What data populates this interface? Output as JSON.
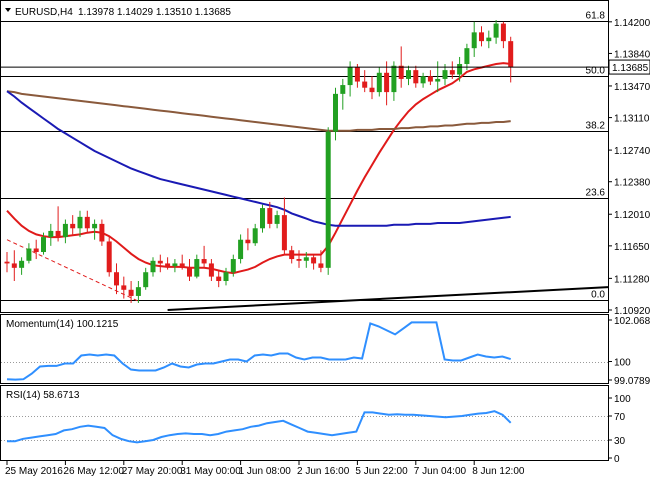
{
  "header": {
    "symbol": "EURUSD,H4",
    "ohlc": "1.13978 1.14029 1.13510 1.13685"
  },
  "colors": {
    "bull": "#22a022",
    "bear": "#e11c1c",
    "sma_fast": "#e01a1a",
    "sma_mid": "#8a5a3c",
    "sma_slow": "#1a1ab4",
    "trend": "#000000",
    "momentum": "#2f8fff",
    "rsi": "#2f8fff"
  },
  "chart_data": [
    {
      "type": "candlestick",
      "title": "EURUSD,H4",
      "ylim": [
        1.1092,
        1.1438
      ],
      "y_ticks": [
        "1.14200",
        "1.13840",
        "1.13470",
        "1.13110",
        "1.12740",
        "1.12380",
        "1.12010",
        "1.11650",
        "1.11280",
        "1.10920"
      ],
      "y_tick_values": [
        1.142,
        1.1384,
        1.1347,
        1.1311,
        1.1274,
        1.1238,
        1.1201,
        1.1165,
        1.1128,
        1.1092
      ],
      "current_price_label": "1.13685",
      "current_price": 1.13685,
      "x_labels": [
        "25 May 2016",
        "26 May 12:00",
        "27 May 20:00",
        "31 May 00:00",
        "1 Jun 08:00",
        "2 Jun 16:00",
        "5 Jun 22:00",
        "7 Jun 04:00",
        "8 Jun 12:00"
      ],
      "x_label_index": [
        0,
        8,
        16,
        24,
        32,
        40,
        48,
        56,
        64
      ],
      "fib_levels": [
        {
          "label": "61.8",
          "value": 1.1421
        },
        {
          "label": "50.0",
          "value": 1.1358
        },
        {
          "label": "38.2",
          "value": 1.1296
        },
        {
          "label": "23.6",
          "value": 1.122
        },
        {
          "label": "0.0",
          "value": 1.1103
        }
      ],
      "candles": [
        [
          1.1147,
          1.1158,
          1.1135,
          1.1145
        ],
        [
          1.1145,
          1.116,
          1.1125,
          1.114
        ],
        [
          1.114,
          1.1152,
          1.1132,
          1.1148
        ],
        [
          1.1148,
          1.1168,
          1.1145,
          1.1162
        ],
        [
          1.1162,
          1.1172,
          1.115,
          1.1158
        ],
        [
          1.1158,
          1.118,
          1.1155,
          1.1175
        ],
        [
          1.1175,
          1.119,
          1.1165,
          1.1182
        ],
        [
          1.1182,
          1.121,
          1.117,
          1.1175
        ],
        [
          1.1175,
          1.1195,
          1.1168,
          1.119
        ],
        [
          1.119,
          1.12,
          1.1178,
          1.1185
        ],
        [
          1.1185,
          1.1205,
          1.1175,
          1.1198
        ],
        [
          1.1198,
          1.1205,
          1.118,
          1.1185
        ],
        [
          1.1185,
          1.1195,
          1.1172,
          1.119
        ],
        [
          1.119,
          1.1195,
          1.1165,
          1.117
        ],
        [
          1.117,
          1.1175,
          1.113,
          1.1135
        ],
        [
          1.1135,
          1.1145,
          1.111,
          1.112
        ],
        [
          1.112,
          1.113,
          1.1105,
          1.1115
        ],
        [
          1.1115,
          1.1125,
          1.11,
          1.1108
        ],
        [
          1.1108,
          1.1125,
          1.11,
          1.1118
        ],
        [
          1.1118,
          1.114,
          1.1115,
          1.1135
        ],
        [
          1.1135,
          1.1152,
          1.113,
          1.1148
        ],
        [
          1.1148,
          1.1155,
          1.1135,
          1.1145
        ],
        [
          1.1145,
          1.1152,
          1.1138,
          1.1142
        ],
        [
          1.1142,
          1.115,
          1.1135,
          1.1145
        ],
        [
          1.1145,
          1.1155,
          1.1138,
          1.114
        ],
        [
          1.114,
          1.115,
          1.1125,
          1.113
        ],
        [
          1.113,
          1.1155,
          1.1128,
          1.115
        ],
        [
          1.115,
          1.1165,
          1.114,
          1.1145
        ],
        [
          1.1145,
          1.115,
          1.1125,
          1.113
        ],
        [
          1.113,
          1.1138,
          1.1118,
          1.1125
        ],
        [
          1.1125,
          1.114,
          1.112,
          1.1135
        ],
        [
          1.1135,
          1.1155,
          1.113,
          1.115
        ],
        [
          1.115,
          1.1178,
          1.1145,
          1.1172
        ],
        [
          1.1172,
          1.1185,
          1.116,
          1.1168
        ],
        [
          1.1168,
          1.119,
          1.1165,
          1.1185
        ],
        [
          1.1185,
          1.1212,
          1.118,
          1.1208
        ],
        [
          1.1208,
          1.1215,
          1.1185,
          1.119
        ],
        [
          1.119,
          1.1205,
          1.1185,
          1.12
        ],
        [
          1.12,
          1.122,
          1.1155,
          1.116
        ],
        [
          1.116,
          1.1165,
          1.1145,
          1.115
        ],
        [
          1.115,
          1.116,
          1.114,
          1.1148
        ],
        [
          1.1148,
          1.1158,
          1.114,
          1.1152
        ],
        [
          1.1152,
          1.1155,
          1.1138,
          1.1145
        ],
        [
          1.1145,
          1.116,
          1.1135,
          1.114
        ],
        [
          1.114,
          1.13,
          1.1132,
          1.1295
        ],
        [
          1.1295,
          1.1345,
          1.1285,
          1.1338
        ],
        [
          1.1338,
          1.1355,
          1.132,
          1.1348
        ],
        [
          1.1348,
          1.1375,
          1.1335,
          1.1368
        ],
        [
          1.1368,
          1.1372,
          1.1345,
          1.1352
        ],
        [
          1.1352,
          1.1365,
          1.134,
          1.1345
        ],
        [
          1.1345,
          1.1358,
          1.1332,
          1.134
        ],
        [
          1.134,
          1.1368,
          1.1335,
          1.1362
        ],
        [
          1.1362,
          1.1375,
          1.1325,
          1.134
        ],
        [
          1.134,
          1.1375,
          1.133,
          1.137
        ],
        [
          1.137,
          1.1392,
          1.1345,
          1.1355
        ],
        [
          1.1355,
          1.137,
          1.1348,
          1.1365
        ],
        [
          1.1365,
          1.137,
          1.1345,
          1.135
        ],
        [
          1.135,
          1.1362,
          1.1345,
          1.1358
        ],
        [
          1.1358,
          1.1365,
          1.1348,
          1.1352
        ],
        [
          1.1352,
          1.1375,
          1.134,
          1.1355
        ],
        [
          1.1355,
          1.1372,
          1.1348,
          1.1365
        ],
        [
          1.1365,
          1.1375,
          1.1355,
          1.136
        ],
        [
          1.136,
          1.138,
          1.1352,
          1.1372
        ],
        [
          1.1372,
          1.1395,
          1.1365,
          1.139
        ],
        [
          1.139,
          1.142,
          1.138,
          1.1408
        ],
        [
          1.1408,
          1.1415,
          1.1392,
          1.1398
        ],
        [
          1.1398,
          1.141,
          1.139,
          1.1402
        ],
        [
          1.1402,
          1.1422,
          1.1395,
          1.1418
        ],
        [
          1.1418,
          1.142,
          1.139,
          1.1398
        ],
        [
          1.1398,
          1.1403,
          1.1351,
          1.13685
        ]
      ],
      "series": [
        {
          "line_id": "sma-fast",
          "values": [
            1.1205,
            1.1196,
            1.1188,
            1.1182,
            1.1178,
            1.1176,
            1.1175,
            1.1175,
            1.1176,
            1.1177,
            1.1178,
            1.118,
            1.1181,
            1.118,
            1.1176,
            1.117,
            1.1163,
            1.1156,
            1.115,
            1.1146,
            1.1143,
            1.1142,
            1.1141,
            1.1141,
            1.1141,
            1.114,
            1.114,
            1.114,
            1.1139,
            1.1137,
            1.1135,
            1.1134,
            1.1136,
            1.1138,
            1.1141,
            1.1146,
            1.115,
            1.1153,
            1.1155,
            1.1155,
            1.1155,
            1.1155,
            1.1155,
            1.1155,
            1.1165,
            1.118,
            1.1196,
            1.1212,
            1.1228,
            1.1243,
            1.1257,
            1.1271,
            1.1284,
            1.1297,
            1.1308,
            1.1318,
            1.1326,
            1.1332,
            1.1337,
            1.1342,
            1.1346,
            1.135,
            1.1356,
            1.1363,
            1.1366,
            1.1368,
            1.137,
            1.1372,
            1.1373,
            1.1372
          ]
        },
        {
          "line_id": "sma-mid",
          "values": [
            1.1341,
            1.134,
            1.1338,
            1.1337,
            1.1336,
            1.1335,
            1.1334,
            1.1333,
            1.1332,
            1.1331,
            1.133,
            1.1329,
            1.1328,
            1.1327,
            1.1326,
            1.1325,
            1.1324,
            1.1323,
            1.1322,
            1.1321,
            1.132,
            1.1319,
            1.1318,
            1.1317,
            1.1316,
            1.1315,
            1.1314,
            1.1313,
            1.1312,
            1.1311,
            1.131,
            1.1309,
            1.1308,
            1.1307,
            1.1306,
            1.1305,
            1.1304,
            1.1303,
            1.1302,
            1.1301,
            1.13,
            1.1299,
            1.1298,
            1.1297,
            1.1296,
            1.1296,
            1.1296,
            1.1296,
            1.1297,
            1.1297,
            1.1297,
            1.1298,
            1.1298,
            1.1298,
            1.1299,
            1.1299,
            1.13,
            1.13,
            1.1301,
            1.1301,
            1.1302,
            1.1302,
            1.1303,
            1.1304,
            1.1304,
            1.1305,
            1.1305,
            1.1306,
            1.1306,
            1.1307
          ]
        },
        {
          "line_id": "sma-slow",
          "values": [
            1.1341,
            1.1335,
            1.1328,
            1.1322,
            1.1316,
            1.131,
            1.1304,
            1.1298,
            1.1293,
            1.1288,
            1.1283,
            1.1278,
            1.1273,
            1.1269,
            1.1265,
            1.1261,
            1.1257,
            1.1253,
            1.125,
            1.1247,
            1.1244,
            1.1241,
            1.1239,
            1.1237,
            1.1235,
            1.1233,
            1.1231,
            1.1229,
            1.1227,
            1.1225,
            1.1223,
            1.1221,
            1.1219,
            1.1217,
            1.1215,
            1.1213,
            1.1211,
            1.1209,
            1.1206,
            1.1202,
            1.1199,
            1.1196,
            1.1193,
            1.1191,
            1.1189,
            1.1188,
            1.1188,
            1.1188,
            1.1188,
            1.1188,
            1.1188,
            1.1188,
            1.1188,
            1.1189,
            1.1189,
            1.1189,
            1.119,
            1.119,
            1.119,
            1.1191,
            1.1191,
            1.1191,
            1.1191,
            1.1192,
            1.1193,
            1.1194,
            1.1195,
            1.1196,
            1.1197,
            1.1198
          ]
        }
      ],
      "trendlines": [
        {
          "line_id": "trend-support",
          "x0": 22,
          "y0": 1.1092,
          "x1": 74,
          "y1": 1.1118
        },
        {
          "line_id": "trend-down",
          "x0": 0,
          "y0": 1.1172,
          "x1": 18,
          "y1": 1.1102
        }
      ]
    },
    {
      "type": "line",
      "title": "Momentum(14) 100.1215",
      "ylim": [
        99.0789,
        102.0687
      ],
      "y_ticks": [
        "102.0687",
        "100",
        "99.0789"
      ],
      "y_tick_values": [
        102.0687,
        100,
        99.0789
      ],
      "series": [
        {
          "line_id": "momentum-line",
          "values": [
            99.12,
            99.1,
            99.12,
            99.4,
            99.75,
            99.78,
            99.78,
            99.9,
            99.9,
            100.3,
            100.35,
            100.3,
            100.35,
            100.3,
            99.9,
            99.6,
            99.55,
            99.55,
            99.55,
            99.7,
            99.9,
            99.75,
            99.7,
            99.85,
            99.9,
            99.9,
            100.0,
            100.1,
            100.1,
            100.0,
            100.3,
            100.35,
            100.3,
            100.4,
            100.4,
            100.2,
            100.1,
            100.2,
            100.2,
            100.1,
            100.1,
            100.1,
            100.2,
            100.15,
            101.9,
            101.75,
            101.55,
            101.35,
            101.65,
            101.95,
            101.95,
            101.95,
            101.95,
            100.1,
            100.05,
            100.05,
            100.2,
            100.35,
            100.25,
            100.2,
            100.25,
            100.12
          ]
        }
      ]
    },
    {
      "type": "line",
      "title": "RSI(14) 58.6713",
      "ylim": [
        0,
        100
      ],
      "y_ticks": [
        "100",
        "70",
        "30",
        "0"
      ],
      "y_tick_values": [
        100,
        70,
        30,
        0
      ],
      "series": [
        {
          "line_id": "rsi-line",
          "values": [
            28,
            28,
            32,
            34,
            36,
            38,
            40,
            46,
            48,
            52,
            54,
            52,
            50,
            38,
            32,
            28,
            26,
            28,
            30,
            35,
            38,
            40,
            41,
            40,
            40,
            38,
            40,
            44,
            46,
            48,
            52,
            54,
            58,
            60,
            62,
            56,
            50,
            44,
            42,
            40,
            38,
            40,
            42,
            44,
            76,
            76,
            74,
            72,
            73,
            72,
            72,
            71,
            70,
            69,
            68,
            69,
            70,
            72,
            74,
            75,
            78,
            72,
            58.67
          ]
        }
      ]
    }
  ]
}
